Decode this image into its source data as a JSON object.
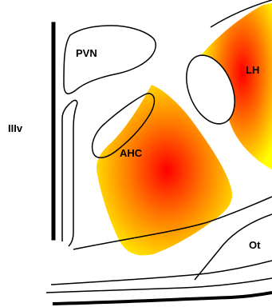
{
  "labels": {
    "pvn": "PVN",
    "lh": "LH",
    "iiiv": "IIIv",
    "ahc": "AHC",
    "ot": "Ot"
  },
  "colors": {
    "activation_center": "#ff0000",
    "activation_mid": "#ff8000",
    "activation_edge": "#ffff00",
    "outline": "#000000",
    "background": "#ffffff"
  }
}
